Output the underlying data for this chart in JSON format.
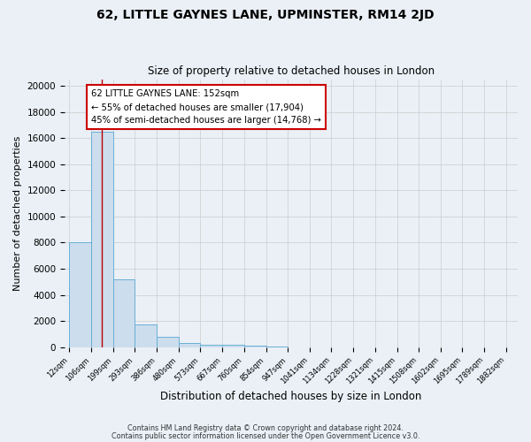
{
  "title": "62, LITTLE GAYNES LANE, UPMINSTER, RM14 2JD",
  "subtitle": "Size of property relative to detached houses in London",
  "xlabel": "Distribution of detached houses by size in London",
  "ylabel": "Number of detached properties",
  "bin_edges": [
    12,
    106,
    199,
    293,
    386,
    480,
    573,
    667,
    760,
    854,
    947,
    1041,
    1134,
    1228,
    1321,
    1415,
    1508,
    1602,
    1695,
    1789,
    1882
  ],
  "bin_heights": [
    8000,
    16500,
    5200,
    1750,
    800,
    350,
    200,
    150,
    100,
    70,
    0,
    0,
    0,
    0,
    0,
    0,
    0,
    0,
    0,
    0
  ],
  "bar_color": "#ccdded",
  "bar_edgecolor": "#6aafd6",
  "bar_linewidth": 0.7,
  "property_size": 152,
  "redline_color": "#bb0000",
  "annotation_title": "62 LITTLE GAYNES LANE: 152sqm",
  "annotation_line1": "← 55% of detached houses are smaller (17,904)",
  "annotation_line2": "45% of semi-detached houses are larger (14,768) →",
  "annotation_box_edgecolor": "#cc0000",
  "annotation_box_facecolor": "#ffffff",
  "ylim": [
    0,
    20500
  ],
  "yticks": [
    0,
    2000,
    4000,
    6000,
    8000,
    10000,
    12000,
    14000,
    16000,
    18000,
    20000
  ],
  "grid_color": "#cccccc",
  "bg_color": "#eaf0f6",
  "footer_line1": "Contains HM Land Registry data © Crown copyright and database right 2024.",
  "footer_line2": "Contains public sector information licensed under the Open Government Licence v3.0."
}
